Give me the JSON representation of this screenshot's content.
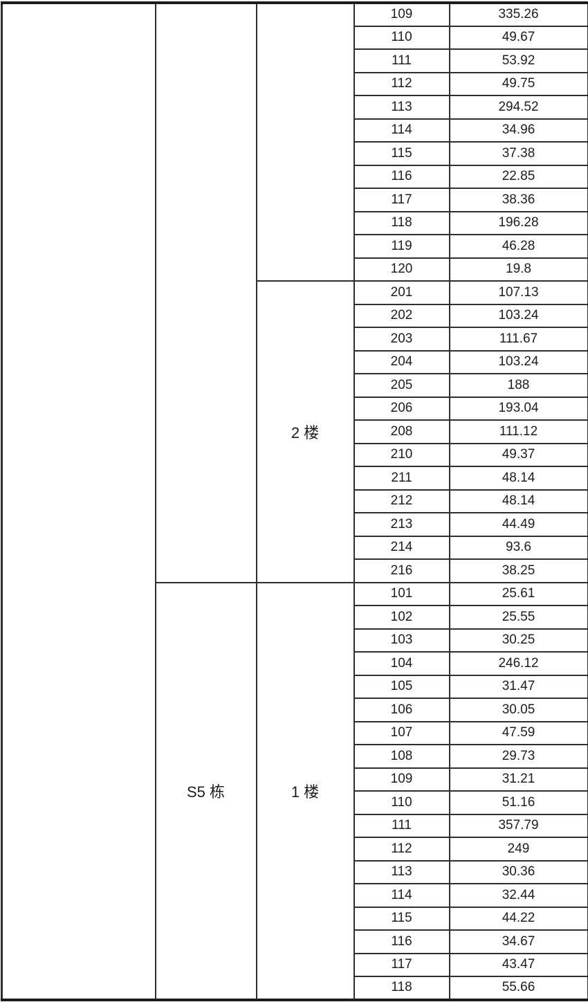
{
  "page": {
    "background_color": "#ffffff",
    "border_color": "#2d2d2d",
    "text_color": "#1d1d1d"
  },
  "table": {
    "groups": [
      {
        "building": "",
        "floors": [
          {
            "floor": "",
            "rooms": [
              {
                "room": "109",
                "value": "335.26"
              },
              {
                "room": "110",
                "value": "49.67"
              },
              {
                "room": "111",
                "value": "53.92"
              },
              {
                "room": "112",
                "value": "49.75"
              },
              {
                "room": "113",
                "value": "294.52"
              },
              {
                "room": "114",
                "value": "34.96"
              },
              {
                "room": "115",
                "value": "37.38"
              },
              {
                "room": "116",
                "value": "22.85"
              },
              {
                "room": "117",
                "value": "38.36"
              },
              {
                "room": "118",
                "value": "196.28"
              },
              {
                "room": "119",
                "value": "46.28"
              },
              {
                "room": "120",
                "value": "19.8"
              }
            ]
          },
          {
            "floor": "2 楼",
            "rooms": [
              {
                "room": "201",
                "value": "107.13"
              },
              {
                "room": "202",
                "value": "103.24"
              },
              {
                "room": "203",
                "value": "111.67"
              },
              {
                "room": "204",
                "value": "103.24"
              },
              {
                "room": "205",
                "value": "188"
              },
              {
                "room": "206",
                "value": "193.04"
              },
              {
                "room": "208",
                "value": "111.12"
              },
              {
                "room": "210",
                "value": "49.37"
              },
              {
                "room": "211",
                "value": "48.14"
              },
              {
                "room": "212",
                "value": "48.14"
              },
              {
                "room": "213",
                "value": "44.49"
              },
              {
                "room": "214",
                "value": "93.6"
              },
              {
                "room": "216",
                "value": "38.25"
              }
            ]
          }
        ]
      },
      {
        "building": "S5 栋",
        "floors": [
          {
            "floor": "1 楼",
            "rooms": [
              {
                "room": "101",
                "value": "25.61"
              },
              {
                "room": "102",
                "value": "25.55"
              },
              {
                "room": "103",
                "value": "30.25"
              },
              {
                "room": "104",
                "value": "246.12"
              },
              {
                "room": "105",
                "value": "31.47"
              },
              {
                "room": "106",
                "value": "30.05"
              },
              {
                "room": "107",
                "value": "47.59"
              },
              {
                "room": "108",
                "value": "29.73"
              },
              {
                "room": "109",
                "value": "31.21"
              },
              {
                "room": "110",
                "value": "51.16"
              },
              {
                "room": "111",
                "value": "357.79"
              },
              {
                "room": "112",
                "value": "249"
              },
              {
                "room": "113",
                "value": "30.36"
              },
              {
                "room": "114",
                "value": "32.44"
              },
              {
                "room": "115",
                "value": "44.22"
              },
              {
                "room": "116",
                "value": "34.67"
              },
              {
                "room": "117",
                "value": "43.47"
              },
              {
                "room": "118",
                "value": "55.66"
              }
            ]
          }
        ]
      }
    ]
  }
}
